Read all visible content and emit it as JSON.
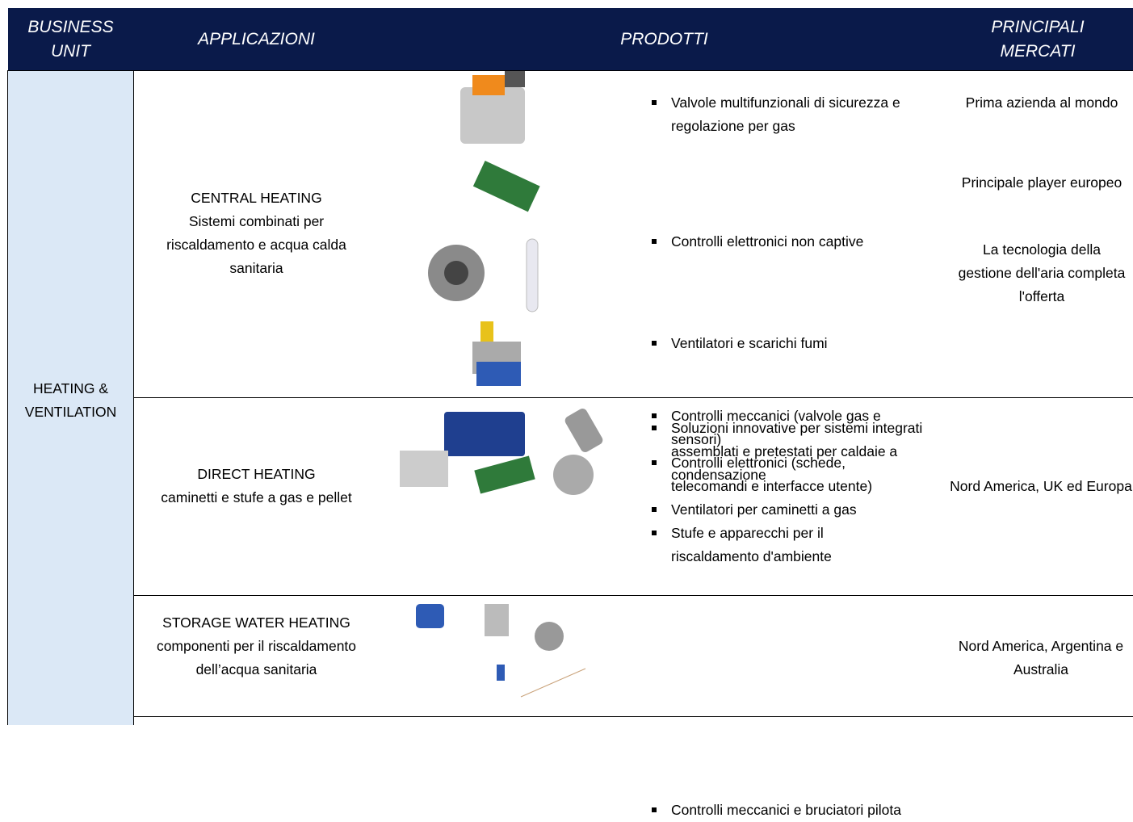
{
  "header": {
    "business_unit": "BUSINESS UNIT",
    "applicazioni": "APPLICAZIONI",
    "prodotti": "PRODOTTI",
    "mercati": "PRINCIPALI MERCATI"
  },
  "business_unit": "HEATING & VENTILATION",
  "rows": [
    {
      "app_title": "CENTRAL HEATING",
      "app_desc": "Sistemi combinati per riscaldamento e acqua calda sanitaria",
      "items": [
        {
          "product": "Valvole multifunzionali di sicurezza e regolazione per gas",
          "market": "Prima azienda al mondo"
        },
        {
          "product": "Controlli elettronici non captive",
          "market": "Principale player europeo"
        },
        {
          "product": "Ventilatori e scarichi fumi",
          "market": "La tecnologia della gestione dell'aria completa l'offerta"
        },
        {
          "product": "Soluzioni innovative per sistemi integrati assemblati e pretestati per caldaie a condensazione"
        }
      ]
    },
    {
      "app_title": "DIRECT HEATING",
      "app_desc": "caminetti e stufe a gas e pellet",
      "products": [
        "Controlli meccanici (valvole gas e sensori)",
        "Controlli elettronici (schede, telecomandi e interfacce utente)",
        "Ventilatori per caminetti a gas",
        "Stufe e apparecchi per il riscaldamento d'ambiente"
      ],
      "market": "Nord America, UK ed Europa"
    },
    {
      "app_title": "STORAGE WATER HEATING",
      "app_desc": "componenti per il riscaldamento dell’acqua sanitaria",
      "products": [
        "Controlli meccanici e bruciatori pilota"
      ],
      "market": "Nord America, Argentina e Australia"
    }
  ]
}
